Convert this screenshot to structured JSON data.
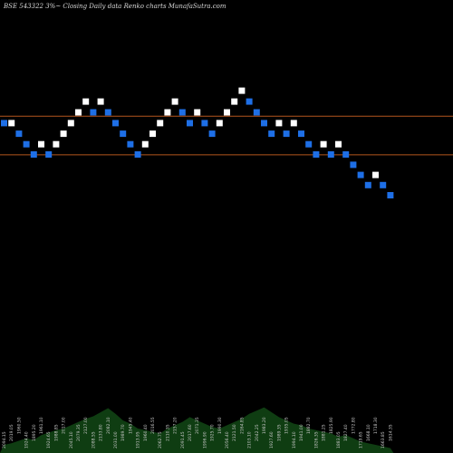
{
  "chart_data": {
    "type": "renko",
    "title": "BSE 543322  3%~   Closing Daily data  Renko  charts MunafaSutra.com",
    "colors": {
      "background": "#000000",
      "up_brick": "#ffffff",
      "down_brick": "#1e6fe6",
      "level_line": "#b4561e",
      "volume_fill": "#0f3d12",
      "volume_text": "#c8c8c8"
    },
    "price_levels": [
      2010.0,
      1955.0
    ],
    "price_range": [
      1620,
      2150
    ],
    "bricks": [
      {
        "dir": "down",
        "price": 2000.2
      },
      {
        "dir": "up",
        "price": 2000.2
      },
      {
        "dir": "down",
        "price": 1985.0
      },
      {
        "dir": "down",
        "price": 1970.1
      },
      {
        "dir": "down",
        "price": 1955.4
      },
      {
        "dir": "up",
        "price": 1970.1
      },
      {
        "dir": "down",
        "price": 1955.4
      },
      {
        "dir": "up",
        "price": 1970.1
      },
      {
        "dir": "up",
        "price": 1985.0
      },
      {
        "dir": "up",
        "price": 2000.2
      },
      {
        "dir": "up",
        "price": 2015.6
      },
      {
        "dir": "up",
        "price": 2031.0
      },
      {
        "dir": "down",
        "price": 2015.6
      },
      {
        "dir": "up",
        "price": 2031.0
      },
      {
        "dir": "down",
        "price": 2015.6
      },
      {
        "dir": "down",
        "price": 2000.2
      },
      {
        "dir": "down",
        "price": 1985.0
      },
      {
        "dir": "down",
        "price": 1970.1
      },
      {
        "dir": "down",
        "price": 1955.4
      },
      {
        "dir": "up",
        "price": 1970.1
      },
      {
        "dir": "up",
        "price": 1985.0
      },
      {
        "dir": "up",
        "price": 2000.2
      },
      {
        "dir": "up",
        "price": 2015.6
      },
      {
        "dir": "up",
        "price": 2031.0
      },
      {
        "dir": "down",
        "price": 2015.6
      },
      {
        "dir": "down",
        "price": 2000.2
      },
      {
        "dir": "up",
        "price": 2015.6
      },
      {
        "dir": "down",
        "price": 2000.2
      },
      {
        "dir": "down",
        "price": 1985.0
      },
      {
        "dir": "up",
        "price": 2000.2
      },
      {
        "dir": "up",
        "price": 2015.6
      },
      {
        "dir": "up",
        "price": 2031.0
      },
      {
        "dir": "up",
        "price": 2046.4
      },
      {
        "dir": "down",
        "price": 2031.0
      },
      {
        "dir": "down",
        "price": 2015.6
      },
      {
        "dir": "down",
        "price": 2000.2
      },
      {
        "dir": "down",
        "price": 1985.0
      },
      {
        "dir": "up",
        "price": 2000.2
      },
      {
        "dir": "down",
        "price": 1985.0
      },
      {
        "dir": "up",
        "price": 2000.2
      },
      {
        "dir": "down",
        "price": 1985.0
      },
      {
        "dir": "down",
        "price": 1970.1
      },
      {
        "dir": "down",
        "price": 1955.4
      },
      {
        "dir": "up",
        "price": 1970.1
      },
      {
        "dir": "down",
        "price": 1955.4
      },
      {
        "dir": "up",
        "price": 1970.1
      },
      {
        "dir": "down",
        "price": 1955.4
      },
      {
        "dir": "down",
        "price": 1940.7
      },
      {
        "dir": "down",
        "price": 1926.2
      },
      {
        "dir": "down",
        "price": 1911.7
      },
      {
        "dir": "up",
        "price": 1926.2
      },
      {
        "dir": "down",
        "price": 1911.7
      },
      {
        "dir": "down",
        "price": 1897.3
      }
    ],
    "brick_labels": [
      "2094.15",
      "2019.05",
      "1960.50",
      "1924.40",
      "1895.20",
      "1961.10",
      "1924.65",
      "1988.85",
      "2017.00",
      "2045.10",
      "2079.35",
      "2127.00",
      "2088.55",
      "2133.80",
      "2082.10",
      "2031.00",
      "1989.70",
      "1945.40",
      "1913.95",
      "1960.40",
      "2016.55",
      "2062.75",
      "2110.35",
      "2157.20",
      "2091.45",
      "2017.60",
      "2071.35",
      "1996.90",
      "1925.70",
      "1990.30",
      "2056.40",
      "2121.50",
      "2164.85",
      "2103.10",
      "2042.25",
      "1983.20",
      "1927.60",
      "1989.35",
      "1935.05",
      "1994.10",
      "1941.00",
      "1882.70",
      "1826.35",
      "1881.25",
      "1825.90",
      "1883.05",
      "1827.40",
      "1772.80",
      "1719.65",
      "1668.10",
      "1718.30",
      "1663.85",
      "1614.35"
    ],
    "volume": [
      10,
      12,
      15,
      18,
      16,
      22,
      25,
      28,
      30,
      34,
      38,
      42,
      45,
      50,
      55,
      48,
      40,
      36,
      30,
      28,
      26,
      24,
      30,
      34,
      38,
      44,
      40,
      36,
      32,
      30,
      34,
      38,
      42,
      48,
      52,
      56,
      50,
      44,
      40,
      36,
      34,
      30,
      28,
      26,
      24,
      20,
      22,
      18,
      14,
      12,
      10,
      8,
      6
    ]
  }
}
